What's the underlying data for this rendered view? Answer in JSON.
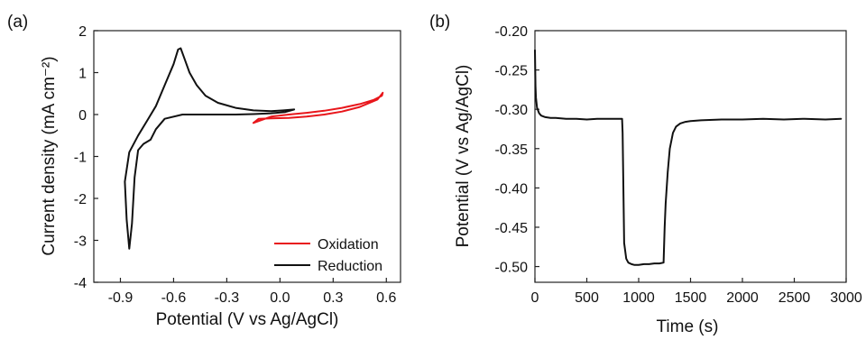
{
  "chart_data": [
    {
      "type": "line",
      "panel_label": "(a)",
      "xlabel": "Potential (V vs Ag/AgCl)",
      "ylabel": "Current density (mA cm⁻²)",
      "xlim": [
        -1.05,
        0.68
      ],
      "ylim": [
        -4,
        2
      ],
      "xticks": [
        -0.9,
        -0.6,
        -0.3,
        0.0,
        0.3,
        0.6
      ],
      "xtick_labels": [
        "-0.9",
        "-0.6",
        "-0.3",
        "0.0",
        "0.3",
        "0.6"
      ],
      "yticks": [
        -4,
        -3,
        -2,
        -1,
        0,
        1,
        2
      ],
      "ytick_labels": [
        "-4",
        "-3",
        "-2",
        "-1",
        "0",
        "1",
        "2"
      ],
      "legend_position": "bottom-right",
      "series": [
        {
          "name": "Oxidation",
          "color": "#e8161b",
          "x": [
            -0.15,
            -0.05,
            0.05,
            0.15,
            0.25,
            0.35,
            0.45,
            0.53,
            0.575,
            0.58,
            0.55,
            0.45,
            0.35,
            0.25,
            0.15,
            0.05,
            -0.05,
            -0.12,
            -0.15
          ],
          "y": [
            -0.2,
            -0.05,
            0.0,
            0.04,
            0.09,
            0.16,
            0.25,
            0.35,
            0.45,
            0.52,
            0.36,
            0.18,
            0.07,
            0.0,
            -0.05,
            -0.08,
            -0.09,
            -0.1,
            -0.2
          ]
        },
        {
          "name": "Reduction",
          "color": "#111111",
          "x": [
            0.08,
            0.02,
            -0.05,
            -0.15,
            -0.25,
            -0.35,
            -0.42,
            -0.47,
            -0.51,
            -0.54,
            -0.56,
            -0.575,
            -0.6,
            -0.65,
            -0.7,
            -0.75,
            -0.8,
            -0.85,
            -0.875,
            -0.865,
            -0.85,
            -0.835,
            -0.82,
            -0.8,
            -0.77,
            -0.73,
            -0.7,
            -0.65,
            -0.55,
            -0.45,
            -0.35,
            -0.25,
            -0.15,
            -0.05,
            0.03,
            0.08
          ],
          "y": [
            0.12,
            0.1,
            0.08,
            0.1,
            0.16,
            0.28,
            0.45,
            0.7,
            1.0,
            1.35,
            1.58,
            1.55,
            1.2,
            0.7,
            0.2,
            -0.15,
            -0.5,
            -0.9,
            -1.6,
            -2.5,
            -3.2,
            -2.6,
            -1.5,
            -0.85,
            -0.7,
            -0.6,
            -0.35,
            -0.1,
            0.0,
            0.0,
            0.0,
            0.0,
            0.01,
            0.03,
            0.06,
            0.12
          ]
        }
      ]
    },
    {
      "type": "line",
      "panel_label": "(b)",
      "xlabel": "Time (s)",
      "ylabel": "Potential (V vs Ag/AgCl)",
      "xlim": [
        0,
        3000
      ],
      "ylim": [
        -0.52,
        -0.2
      ],
      "xticks": [
        0,
        500,
        1000,
        1500,
        2000,
        2500,
        3000
      ],
      "xtick_labels": [
        "0",
        "500",
        "1000",
        "1500",
        "2000",
        "2500",
        "3000"
      ],
      "yticks": [
        -0.5,
        -0.45,
        -0.4,
        -0.35,
        -0.3,
        -0.25,
        -0.2
      ],
      "ytick_labels": [
        "-0.50",
        "-0.45",
        "-0.40",
        "-0.35",
        "-0.30",
        "-0.25",
        "-0.20"
      ],
      "series": [
        {
          "color": "#111111",
          "x": [
            0,
            5,
            10,
            20,
            40,
            60,
            100,
            150,
            200,
            300,
            400,
            500,
            600,
            700,
            800,
            840,
            845,
            860,
            880,
            900,
            930,
            960,
            1000,
            1050,
            1100,
            1150,
            1200,
            1240,
            1250,
            1260,
            1280,
            1300,
            1330,
            1360,
            1400,
            1450,
            1500,
            1600,
            1800,
            2000,
            2200,
            2400,
            2600,
            2800,
            2950
          ],
          "y": [
            -0.225,
            -0.27,
            -0.285,
            -0.298,
            -0.305,
            -0.308,
            -0.31,
            -0.311,
            -0.311,
            -0.312,
            -0.312,
            -0.313,
            -0.312,
            -0.312,
            -0.312,
            -0.312,
            -0.33,
            -0.47,
            -0.49,
            -0.495,
            -0.497,
            -0.498,
            -0.498,
            -0.497,
            -0.497,
            -0.496,
            -0.496,
            -0.495,
            -0.45,
            -0.42,
            -0.38,
            -0.35,
            -0.33,
            -0.322,
            -0.318,
            -0.316,
            -0.315,
            -0.314,
            -0.313,
            -0.313,
            -0.312,
            -0.313,
            -0.312,
            -0.313,
            -0.312
          ]
        }
      ]
    }
  ]
}
